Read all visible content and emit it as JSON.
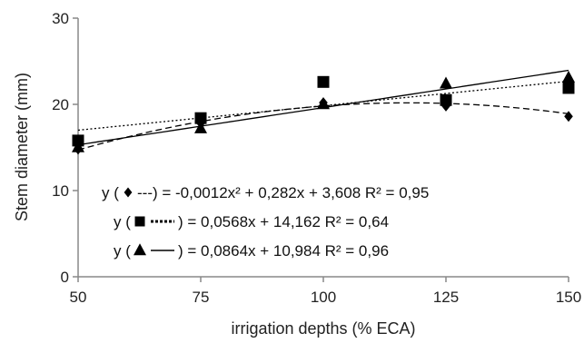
{
  "chart_data": {
    "type": "scatter",
    "xlabel": "irrigation depths (% ECA)",
    "ylabel": "Stem diameter (mm)",
    "x": [
      50,
      75,
      100,
      125,
      150
    ],
    "xticks": [
      50,
      75,
      100,
      125,
      150
    ],
    "yticks": [
      0,
      10,
      20,
      30
    ],
    "xlim": [
      50,
      150
    ],
    "ylim": [
      0,
      30
    ],
    "grid": false,
    "series": [
      {
        "marker": "diamond",
        "values": [
          14.8,
          17.8,
          20.2,
          19.8,
          18.6
        ],
        "fit": {
          "kind": "quadratic",
          "a": -0.0012,
          "b": 0.282,
          "c": 3.608,
          "dash": "dashed"
        }
      },
      {
        "marker": "square",
        "values": [
          15.8,
          18.4,
          22.6,
          20.5,
          21.9
        ],
        "fit": {
          "kind": "linear",
          "slope": 0.0568,
          "intercept": 14.162,
          "dash": "dotted"
        }
      },
      {
        "marker": "triangle",
        "values": [
          15.0,
          17.2,
          20.0,
          22.4,
          23.1
        ],
        "fit": {
          "kind": "linear",
          "slope": 0.0864,
          "intercept": 10.984,
          "dash": "solid"
        }
      }
    ],
    "annotations": [
      {
        "prefix": "y (",
        "suffix": " ---) = -0,0012x² + 0,282x + 3,608 R² = 0,95",
        "marker": "diamond",
        "dash": "dashed"
      },
      {
        "prefix": "y (",
        "suffix": ") = 0,0568x + 14,162 R² = 0,64",
        "marker": "square",
        "dash": "dotted"
      },
      {
        "prefix": "y (",
        "suffix": ") = 0,0864x + 10,984 R² = 0,96",
        "marker": "triangle",
        "dash": "solid"
      }
    ]
  }
}
